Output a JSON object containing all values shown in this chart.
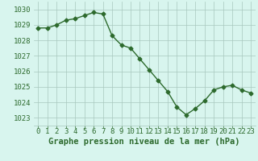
{
  "x": [
    0,
    1,
    2,
    3,
    4,
    5,
    6,
    7,
    8,
    9,
    10,
    11,
    12,
    13,
    14,
    15,
    16,
    17,
    18,
    19,
    20,
    21,
    22,
    23
  ],
  "y": [
    1028.8,
    1028.8,
    1029.0,
    1029.3,
    1029.4,
    1029.6,
    1029.8,
    1029.7,
    1028.3,
    1027.7,
    1027.5,
    1026.8,
    1026.1,
    1025.4,
    1024.7,
    1023.7,
    1023.2,
    1023.6,
    1024.1,
    1024.8,
    1025.0,
    1025.1,
    1024.8,
    1024.6
  ],
  "line_color": "#2d6a2d",
  "marker": "D",
  "marker_size": 2.5,
  "line_width": 1.0,
  "bg_color": "#d8f5ee",
  "grid_color": "#a8c8be",
  "xlabel": "Graphe pression niveau de la mer (hPa)",
  "xlabel_color": "#2d6a2d",
  "xlabel_fontsize": 7.5,
  "tick_label_color": "#2d6a2d",
  "tick_fontsize": 6.5,
  "ylim": [
    1022.5,
    1030.5
  ],
  "yticks": [
    1023,
    1024,
    1025,
    1026,
    1027,
    1028,
    1029,
    1030
  ],
  "xlim": [
    -0.5,
    23.5
  ],
  "xticks": [
    0,
    1,
    2,
    3,
    4,
    5,
    6,
    7,
    8,
    9,
    10,
    11,
    12,
    13,
    14,
    15,
    16,
    17,
    18,
    19,
    20,
    21,
    22,
    23
  ]
}
